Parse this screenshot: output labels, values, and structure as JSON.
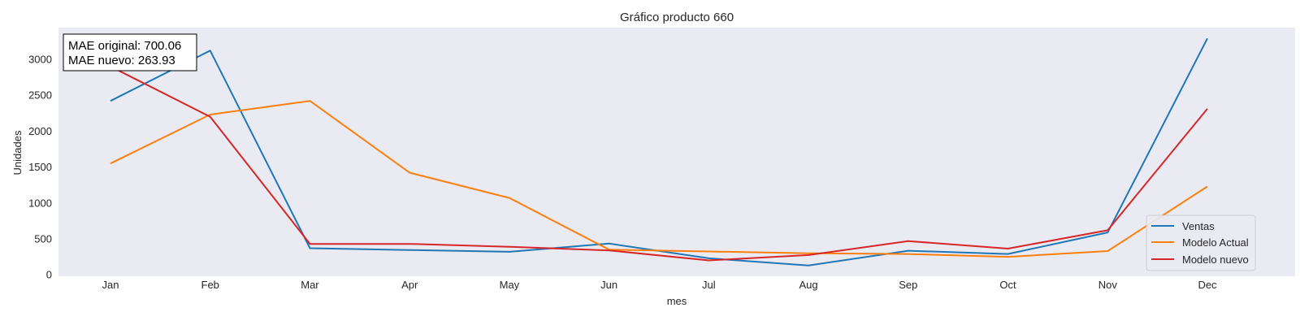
{
  "chart_data": {
    "type": "line",
    "title": "Gráfico producto 660",
    "xlabel": "mes",
    "ylabel": "Unidades",
    "categories": [
      "Jan",
      "Feb",
      "Mar",
      "Apr",
      "May",
      "Jun",
      "Jul",
      "Aug",
      "Sep",
      "Oct",
      "Nov",
      "Dec"
    ],
    "yticks": [
      0,
      500,
      1000,
      1500,
      2000,
      2500,
      3000
    ],
    "ylim": [
      -20,
      3440
    ],
    "grid": false,
    "legend_position": "lower-right",
    "background": "#eaeaf2",
    "series": [
      {
        "name": "Ventas",
        "color": "#1f77b4",
        "values": [
          2420,
          3120,
          370,
          345,
          320,
          435,
          230,
          130,
          335,
          290,
          590,
          3290
        ]
      },
      {
        "name": "Modelo Actual",
        "color": "#ff7f0e",
        "values": [
          1550,
          2230,
          2420,
          1420,
          1070,
          350,
          325,
          300,
          290,
          250,
          330,
          1230
        ]
      },
      {
        "name": "Modelo nuevo",
        "color": "#d62728",
        "values": [
          2900,
          2200,
          430,
          430,
          390,
          340,
          200,
          275,
          470,
          365,
          620,
          2310
        ]
      }
    ],
    "annotations": [
      "MAE original: 700.06",
      "MAE nuevo: 263.93"
    ]
  }
}
